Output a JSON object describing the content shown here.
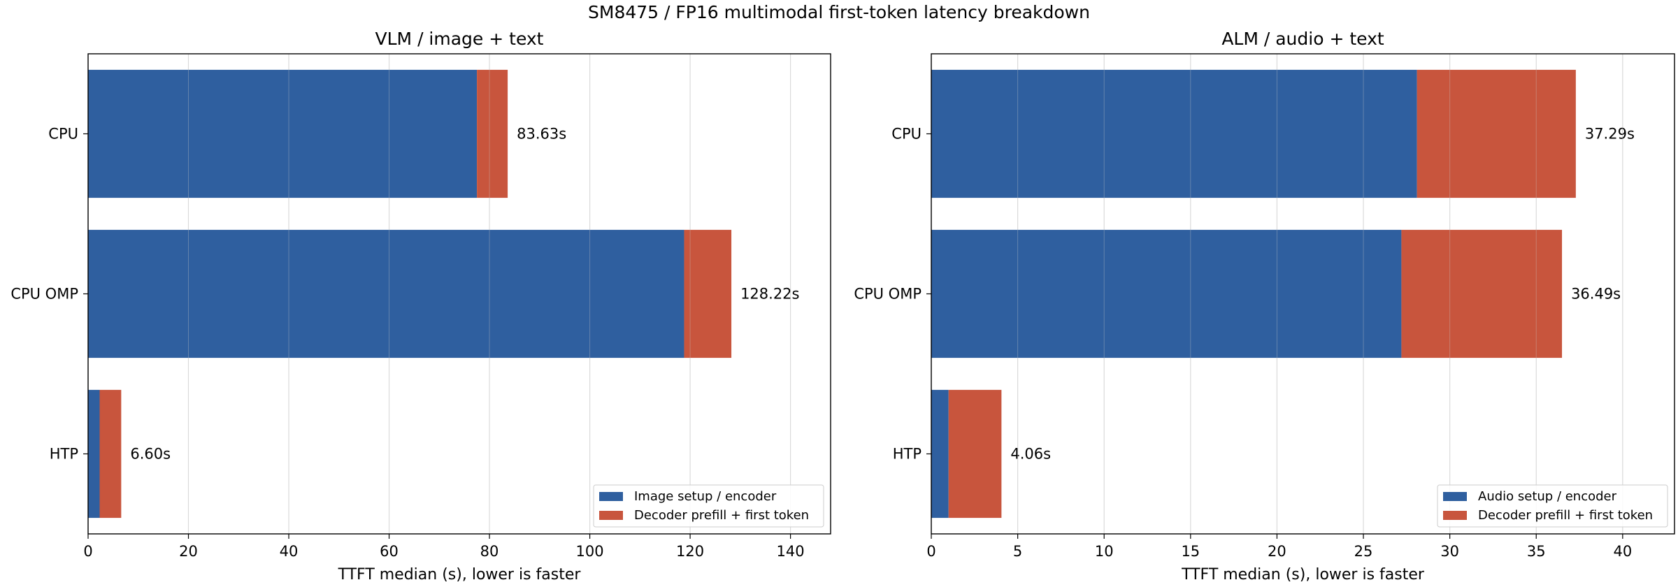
{
  "figure": {
    "suptitle": "SM8475 / FP16 multimodal first-token latency breakdown"
  },
  "chart_data": [
    {
      "type": "bar",
      "orientation": "horizontal",
      "stacked": true,
      "title": "VLM / image + text",
      "xlabel": "TTFT median (s), lower is faster",
      "ylabel": "",
      "categories": [
        "CPU",
        "CPU OMP",
        "HTP"
      ],
      "series": [
        {
          "name": "Image setup / encoder",
          "color": "#2f5f9f",
          "values": [
            77.5,
            118.8,
            2.3
          ]
        },
        {
          "name": "Decoder prefill + first token",
          "color": "#c8553d",
          "values": [
            6.13,
            9.42,
            4.3
          ]
        }
      ],
      "totals": [
        83.63,
        128.22,
        6.6
      ],
      "data_labels": [
        "83.63s",
        "128.22s",
        "6.60s"
      ],
      "xlim": [
        0,
        148
      ],
      "xticks": [
        0,
        20,
        40,
        60,
        80,
        100,
        120,
        140
      ],
      "grid": "x",
      "legend_position": "lower-right"
    },
    {
      "type": "bar",
      "orientation": "horizontal",
      "stacked": true,
      "title": "ALM / audio + text",
      "xlabel": "TTFT median (s), lower is faster",
      "ylabel": "",
      "categories": [
        "CPU",
        "CPU OMP",
        "HTP"
      ],
      "series": [
        {
          "name": "Audio setup / encoder",
          "color": "#2f5f9f",
          "values": [
            28.1,
            27.2,
            1.0
          ]
        },
        {
          "name": "Decoder prefill + first token",
          "color": "#c8553d",
          "values": [
            9.19,
            9.29,
            3.06
          ]
        }
      ],
      "totals": [
        37.29,
        36.49,
        4.06
      ],
      "data_labels": [
        "37.29s",
        "36.49s",
        "4.06s"
      ],
      "xlim": [
        0,
        43
      ],
      "xticks": [
        0,
        5,
        10,
        15,
        20,
        25,
        30,
        35,
        40
      ],
      "grid": "x",
      "legend_position": "lower-right"
    }
  ]
}
